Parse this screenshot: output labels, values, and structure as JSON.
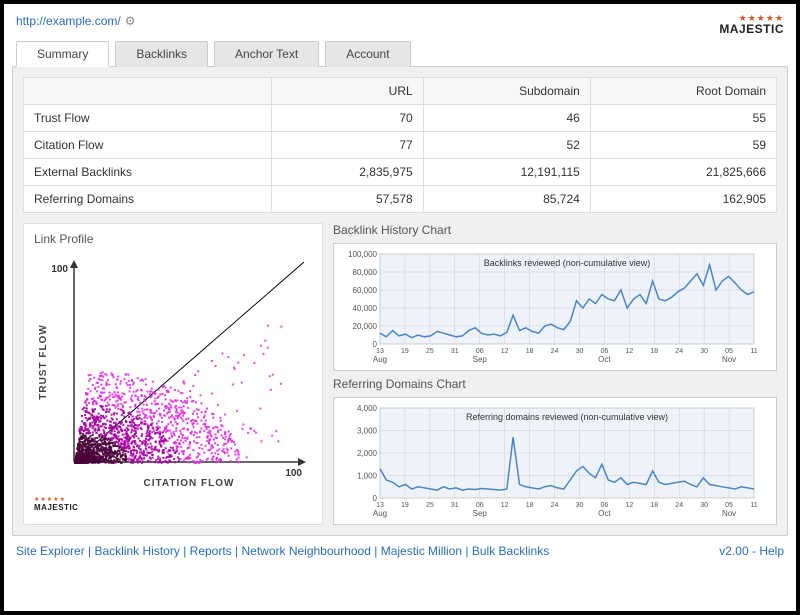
{
  "header": {
    "url": "http://example.com/",
    "logo_text": "MAJESTIC"
  },
  "tabs": [
    {
      "label": "Summary",
      "active": true
    },
    {
      "label": "Backlinks",
      "active": false
    },
    {
      "label": "Anchor Text",
      "active": false
    },
    {
      "label": "Account",
      "active": false
    }
  ],
  "metrics": {
    "columns": [
      "",
      "URL",
      "Subdomain",
      "Root Domain"
    ],
    "rows": [
      {
        "label": "Trust Flow",
        "url": "70",
        "subdomain": "46",
        "root": "55"
      },
      {
        "label": "Citation Flow",
        "url": "77",
        "subdomain": "52",
        "root": "59"
      },
      {
        "label": "External Backlinks",
        "url": "2,835,975",
        "subdomain": "12,191,115",
        "root": "21,825,666"
      },
      {
        "label": "Referring Domains",
        "url": "57,578",
        "subdomain": "85,724",
        "root": "162,905"
      }
    ]
  },
  "link_profile": {
    "title": "Link Profile",
    "xlabel": "CITATION FLOW",
    "ylabel": "TRUST FLOW",
    "max_label": "100",
    "xlim": [
      0,
      100
    ],
    "ylim": [
      0,
      100
    ],
    "background": "#ffffff",
    "diag_color": "#000000",
    "axis_color": "#333333",
    "colors": {
      "core": "#4a003a",
      "mid": "#a4009f",
      "spread": "#e030e0"
    }
  },
  "backlink_chart": {
    "title": "Backlink History Chart",
    "legend": "Backlinks reviewed (non-cumulative view)",
    "ylim": [
      0,
      100000
    ],
    "ytick_step": 20000,
    "yticks": [
      "0",
      "20,000",
      "40,000",
      "60,000",
      "80,000",
      "100,000"
    ],
    "xticks": [
      "13",
      "19",
      "25",
      "31",
      "06",
      "12",
      "18",
      "24",
      "30",
      "06",
      "12",
      "18",
      "24",
      "30",
      "05",
      "11"
    ],
    "xmonths": [
      {
        "label": "Aug",
        "at": 0
      },
      {
        "label": "Sep",
        "at": 4
      },
      {
        "label": "Oct",
        "at": 9
      },
      {
        "label": "Nov",
        "at": 14
      }
    ],
    "line_color": "#4a86c6",
    "grid_color": "#cccccc",
    "bg_color": "#eef3f9",
    "data": [
      12000,
      8000,
      15000,
      9000,
      11000,
      7000,
      10000,
      8000,
      9000,
      14000,
      12000,
      10000,
      8000,
      9000,
      15000,
      18000,
      12000,
      10000,
      11000,
      9000,
      13000,
      32000,
      15000,
      18000,
      14000,
      12000,
      20000,
      22000,
      18000,
      16000,
      25000,
      48000,
      40000,
      50000,
      45000,
      55000,
      50000,
      48000,
      60000,
      40000,
      50000,
      55000,
      45000,
      70000,
      50000,
      48000,
      52000,
      58000,
      62000,
      70000,
      78000,
      65000,
      88000,
      60000,
      70000,
      75000,
      68000,
      60000,
      55000,
      58000
    ]
  },
  "refdom_chart": {
    "title": "Referring Domains Chart",
    "legend": "Referring domains reviewed (non-cumulative view)",
    "ylim": [
      0,
      4000
    ],
    "ytick_step": 1000,
    "yticks": [
      "0",
      "1,000",
      "2,000",
      "3,000",
      "4,000"
    ],
    "xticks": [
      "13",
      "19",
      "25",
      "31",
      "06",
      "12",
      "18",
      "24",
      "30",
      "06",
      "12",
      "18",
      "24",
      "30",
      "05",
      "11"
    ],
    "xmonths": [
      {
        "label": "Aug",
        "at": 0
      },
      {
        "label": "Sep",
        "at": 4
      },
      {
        "label": "Oct",
        "at": 9
      },
      {
        "label": "Nov",
        "at": 14
      }
    ],
    "line_color": "#4a86c6",
    "grid_color": "#cccccc",
    "bg_color": "#eef3f9",
    "data": [
      1300,
      800,
      700,
      500,
      600,
      400,
      500,
      450,
      400,
      350,
      500,
      400,
      450,
      350,
      400,
      380,
      420,
      400,
      380,
      350,
      400,
      2700,
      600,
      500,
      450,
      400,
      500,
      550,
      450,
      400,
      800,
      1200,
      1400,
      1100,
      900,
      1500,
      800,
      700,
      900,
      600,
      700,
      650,
      600,
      1200,
      700,
      600,
      650,
      700,
      750,
      600,
      500,
      900,
      600,
      550,
      500,
      450,
      400,
      500,
      450,
      400
    ]
  },
  "footer": {
    "links": [
      "Site Explorer",
      "Backlink History",
      "Reports",
      "Network Neighbourhood",
      "Majestic Million",
      "Bulk Backlinks"
    ],
    "version": "v2.00",
    "help": "Help"
  }
}
